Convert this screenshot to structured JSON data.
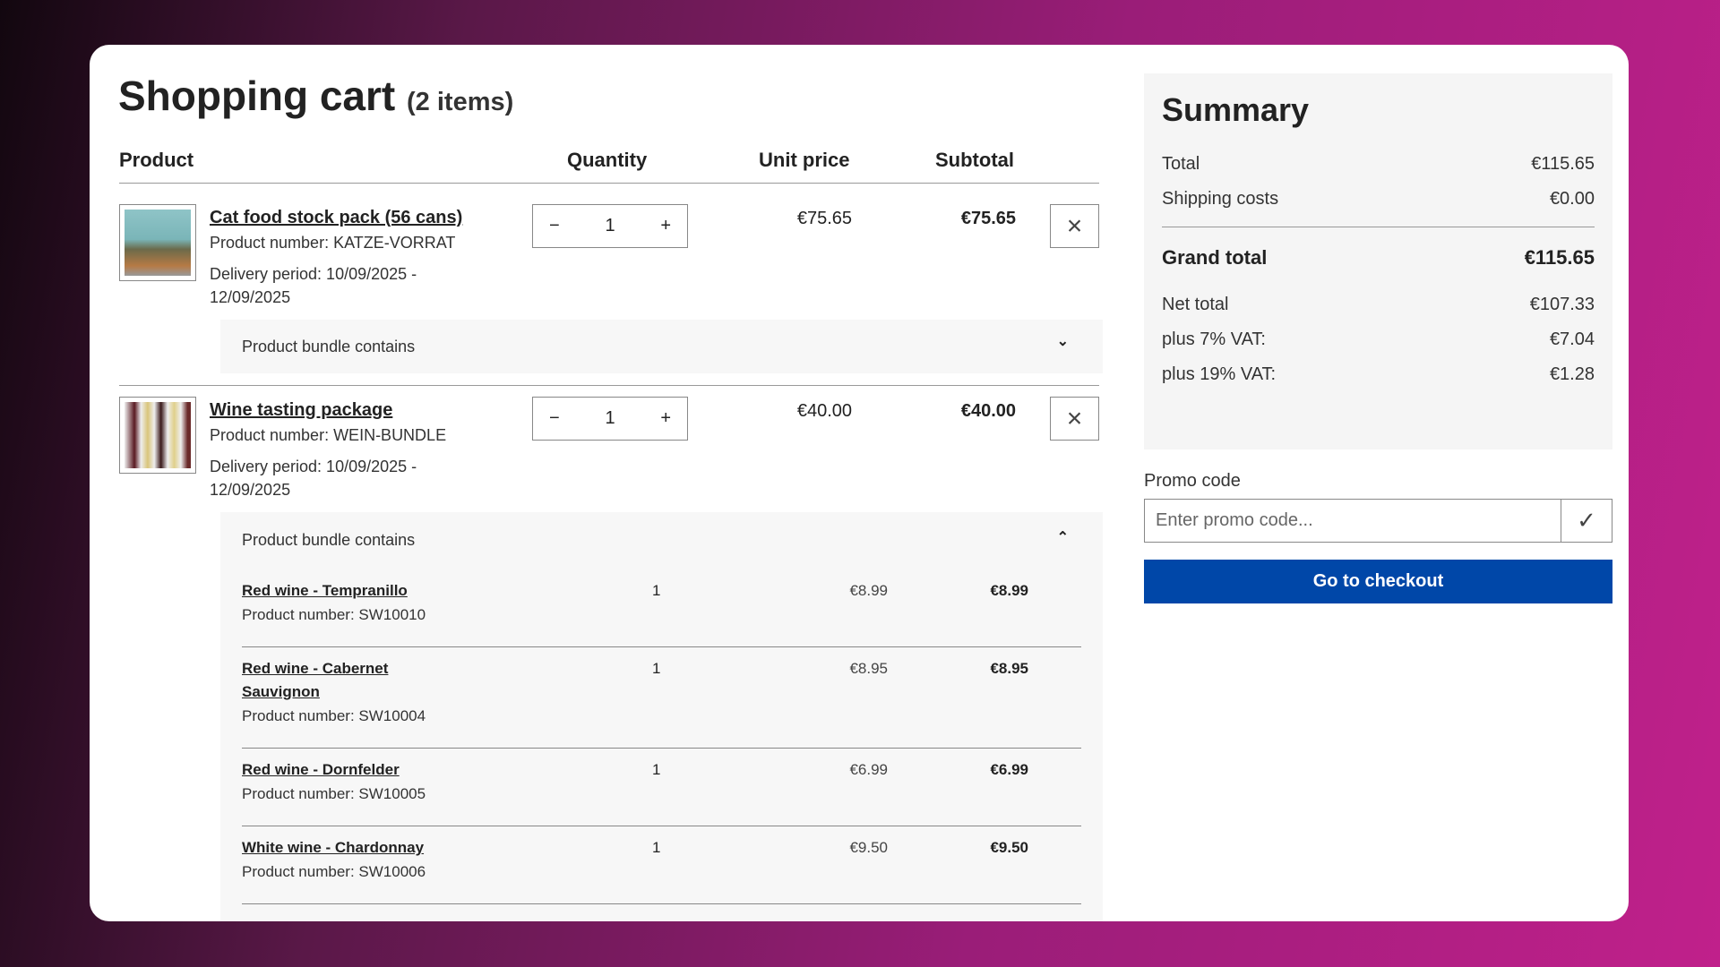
{
  "cart": {
    "title": "Shopping cart",
    "count": "(2 items)",
    "headers": {
      "product": "Product",
      "quantity": "Quantity",
      "unit_price": "Unit price",
      "subtotal": "Subtotal"
    },
    "items": [
      {
        "name": "Cat food stock pack (56 cans)",
        "number": "Product number: KATZE-VORRAT",
        "delivery": "Delivery period: 10/09/2025 -",
        "delivery2": "12/09/2025",
        "qty": "1",
        "unit_price": "€75.65",
        "subtotal": "€75.65",
        "bundle_label": "Product bundle contains",
        "expanded": false
      },
      {
        "name": "Wine tasting package",
        "number": "Product number: WEIN-BUNDLE",
        "delivery": "Delivery period: 10/09/2025 -",
        "delivery2": "12/09/2025",
        "qty": "1",
        "unit_price": "€40.00",
        "subtotal": "€40.00",
        "bundle_label": "Product bundle contains",
        "expanded": true,
        "bundle": [
          {
            "name": "Red wine - Tempranillo",
            "number": "Product number: SW10010",
            "qty": "1",
            "unit_price": "€8.99",
            "subtotal": "€8.99"
          },
          {
            "name": "Red wine - Cabernet Sauvignon",
            "number": "Product number: SW10004",
            "qty": "1",
            "unit_price": "€8.95",
            "subtotal": "€8.95"
          },
          {
            "name": "Red wine - Dornfelder",
            "number": "Product number: SW10005",
            "qty": "1",
            "unit_price": "€6.99",
            "subtotal": "€6.99"
          },
          {
            "name": "White wine - Chardonnay",
            "number": "Product number: SW10006",
            "qty": "1",
            "unit_price": "€9.50",
            "subtotal": "€9.50"
          }
        ]
      }
    ],
    "icons": {
      "minus": "−",
      "plus": "+",
      "remove": "×",
      "chevron_down": "⌄",
      "chevron_up": "⌃",
      "check": "✓"
    }
  },
  "summary": {
    "title": "Summary",
    "total_label": "Total",
    "total": "€115.65",
    "shipping_label": "Shipping costs",
    "shipping": "€0.00",
    "grand_label": "Grand total",
    "grand": "€115.65",
    "net_label": "Net total",
    "net": "€107.33",
    "vat7_label": "plus 7% VAT:",
    "vat7": "€7.04",
    "vat19_label": "plus 19% VAT:",
    "vat19": "€1.28"
  },
  "promo": {
    "label": "Promo code",
    "placeholder": "Enter promo code..."
  },
  "checkout": {
    "label": "Go to checkout"
  },
  "colors": {
    "primary": "#0047a8"
  }
}
